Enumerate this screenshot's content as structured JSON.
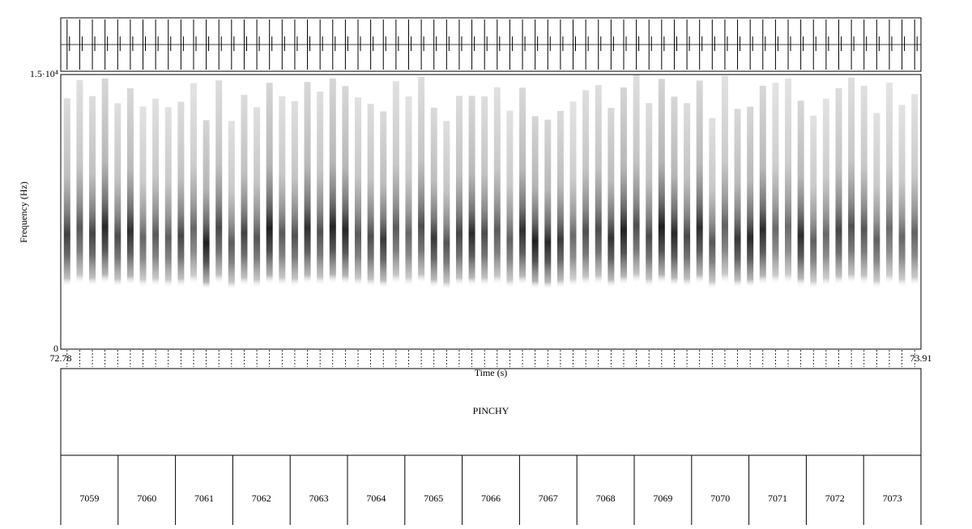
{
  "spectrogram": {
    "y_axis_label": "Frequency (Hz)",
    "y_max_label": "1.5·10⁴",
    "y_min_label": "0",
    "x_start_label": "72.78",
    "x_end_label": "73.91",
    "x_axis_label": "Time (s)"
  },
  "tiers": [
    {
      "intervals": [
        "PINCHY"
      ]
    },
    {
      "intervals": [
        "7059",
        "7060",
        "7061",
        "7062",
        "7063",
        "7064",
        "7065",
        "7066",
        "7067",
        "7068",
        "7069",
        "7070",
        "7071",
        "7072",
        "7073"
      ]
    }
  ]
}
